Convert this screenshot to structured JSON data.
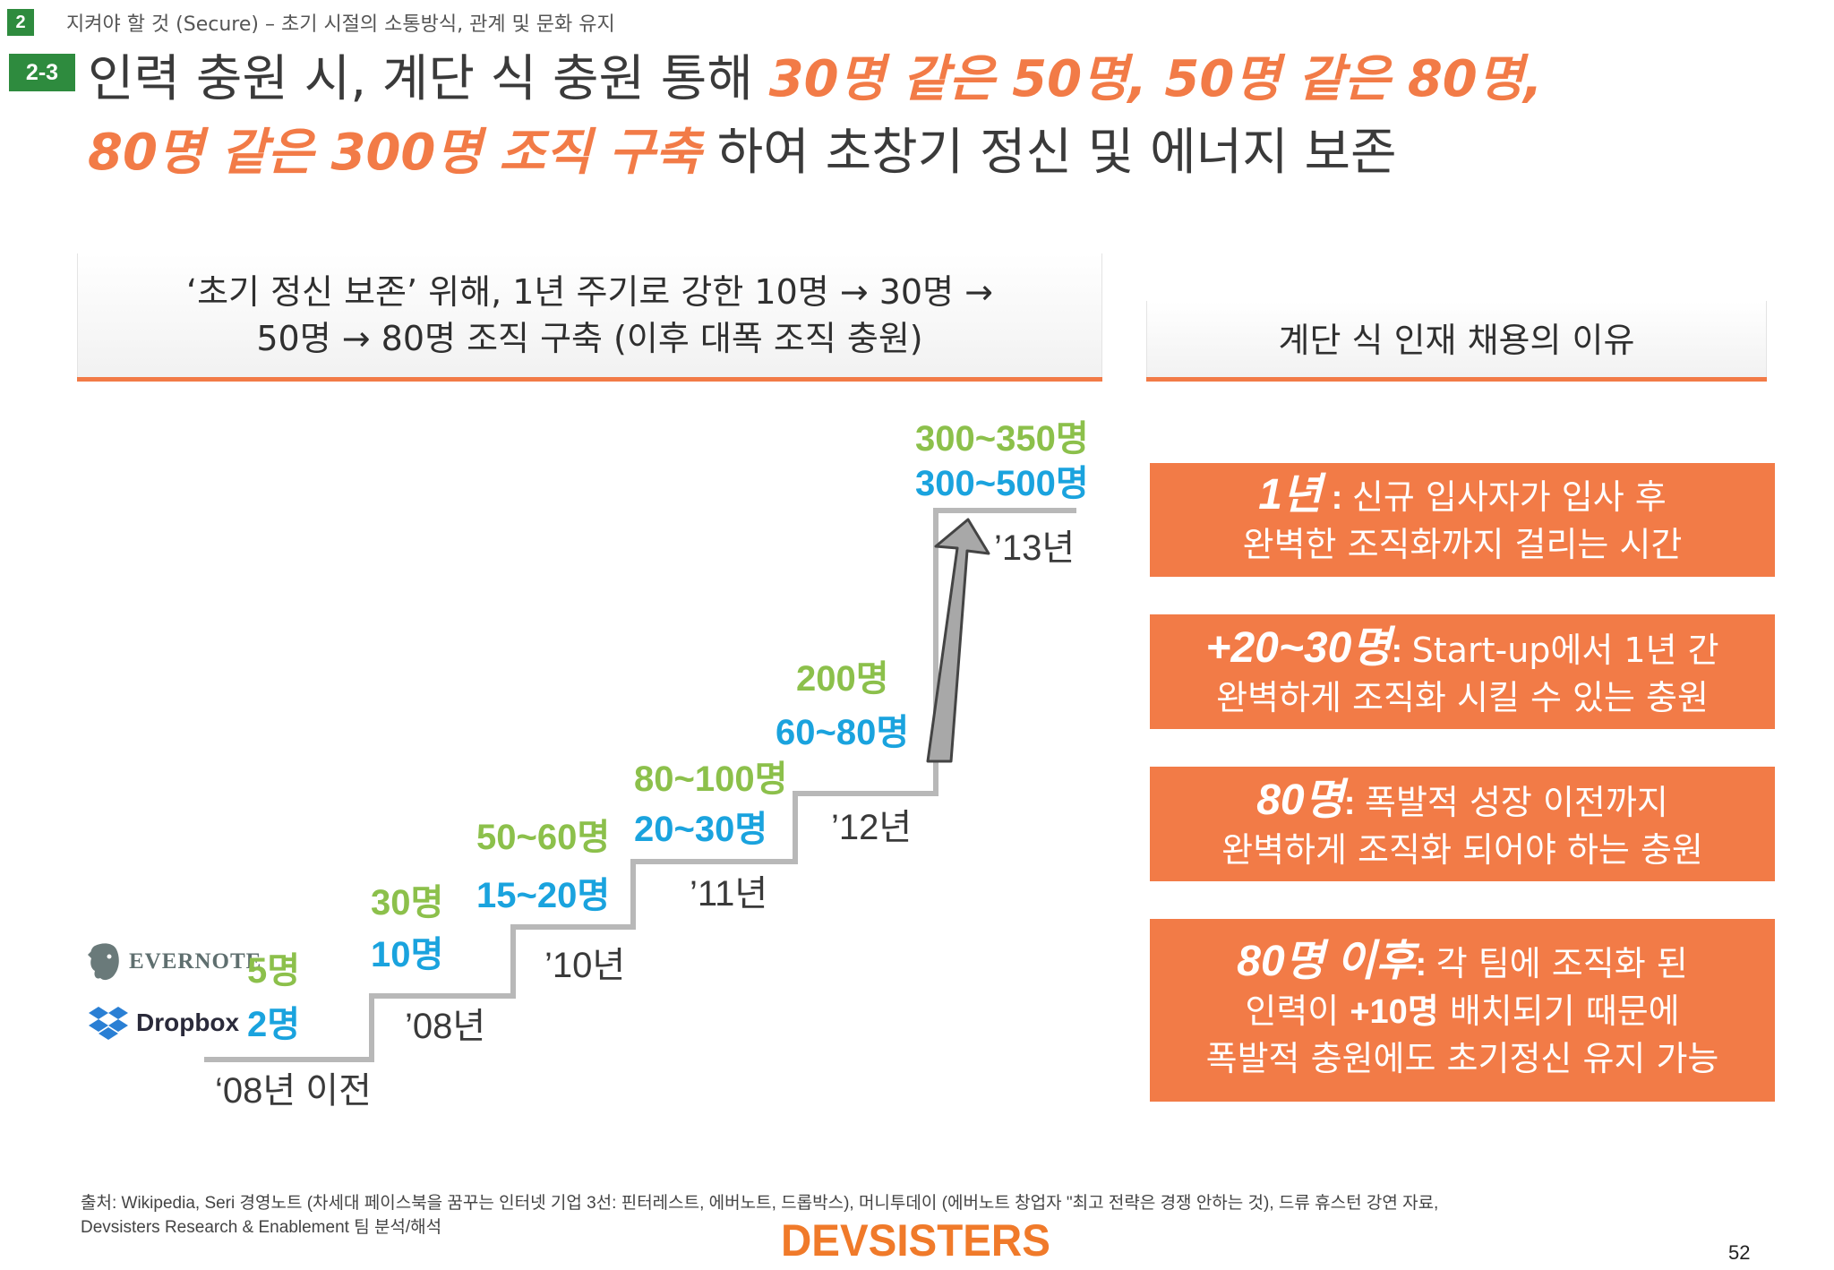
{
  "header": {
    "section_number": "2",
    "breadcrumb": "지켜야 할 것 (Secure) – 초기 시절의 소통방식, 관계 및 문화 유지",
    "subsection_number": "2-3",
    "title_line1_plain": "인력 충원 시, 계단 식 충원 통해 ",
    "title_line1_highlight": "30명 같은 50명, 50명 같은 80명,",
    "title_line2_highlight": "80명 같은 300명 조직 구축",
    "title_line2_plain": " 하여 초창기 정신 및 에너지 보존"
  },
  "left_panel": {
    "heading_line1": "‘초기 정신 보존’ 위해, 1년 주기로 강한 10명 → 30명 →",
    "heading_line2": "50명 → 80명 조직 구축 (이후 대폭 조직 충원)"
  },
  "staircase": {
    "logos": {
      "evernote": "EVERNOTE",
      "dropbox": "Dropbox"
    },
    "steps": [
      {
        "year": "‘08년 이전",
        "evernote": "5명",
        "dropbox": "2명"
      },
      {
        "year": "’08년",
        "evernote": "30명",
        "dropbox": "10명"
      },
      {
        "year": "’10년",
        "evernote": "50~60명",
        "dropbox": "15~20명"
      },
      {
        "year": "’11년",
        "evernote": "80~100명",
        "dropbox": "20~30명"
      },
      {
        "year": "’12년",
        "evernote": "200명",
        "dropbox": "60~80명"
      },
      {
        "year": "’13년",
        "evernote": "300~350명",
        "dropbox": "300~500명"
      }
    ],
    "colors": {
      "evernote": "#8cc04b",
      "dropbox": "#1aa3de",
      "stairs": "#b8b8b8",
      "arrow": "#a8a8a8"
    }
  },
  "right_panel": {
    "heading": "계단 식 인재 채용의 이유",
    "reasons": [
      {
        "key": "1년",
        "sep": " : ",
        "line1": "신규 입사자가 입사 후",
        "line2": "완벽한 조직화까지 걸리는 시간",
        "line3": ""
      },
      {
        "key": "+20~30명",
        "sep": ": ",
        "line1": "Start-up에서 1년 간",
        "line2": "완벽하게 조직화 시킬 수 있는 충원",
        "line3": ""
      },
      {
        "key": "80명",
        "sep": ": ",
        "line1": "폭발적 성장 이전까지",
        "line2": "완벽하게 조직화 되어야 하는 충원",
        "line3": ""
      },
      {
        "key": "80명 이후",
        "sep": ": ",
        "line1": "각 팀에 조직화 된",
        "line2a": "인력이 ",
        "line2b": "+10명",
        "line2c": " 배치되기 때문에",
        "line3": "폭발적 충원에도 초기정신 유지 가능"
      }
    ],
    "accent_color": "#f27b47"
  },
  "footer": {
    "source_line1": "출처: Wikipedia, Seri 경영노트 (차세대 페이스북을 꿈꾸는 인터넷 기업 3선: 핀터레스트, 에버노트, 드롭박스), 머니투데이 (에버노트 창업자 \"최고 전략은 경쟁 안하는 것), 드류 휴스턴 강연 자료,",
    "source_line2": "Devsisters Research & Enablement 팀 분석/해석",
    "brand": "DEVSISTERS",
    "page_number": "52"
  }
}
